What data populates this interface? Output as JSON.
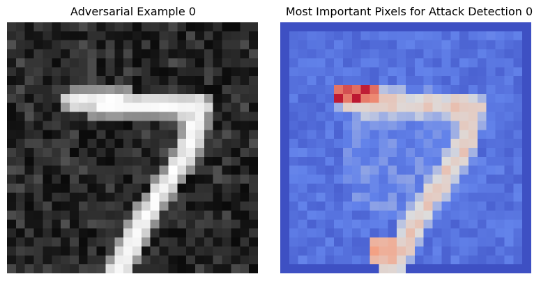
{
  "panels": [
    {
      "title": "Adversarial Example 0",
      "colormap": "gray"
    },
    {
      "title": "Most Important Pixels for Attack Detection 0",
      "colormap": "coolwarm"
    }
  ]
}
